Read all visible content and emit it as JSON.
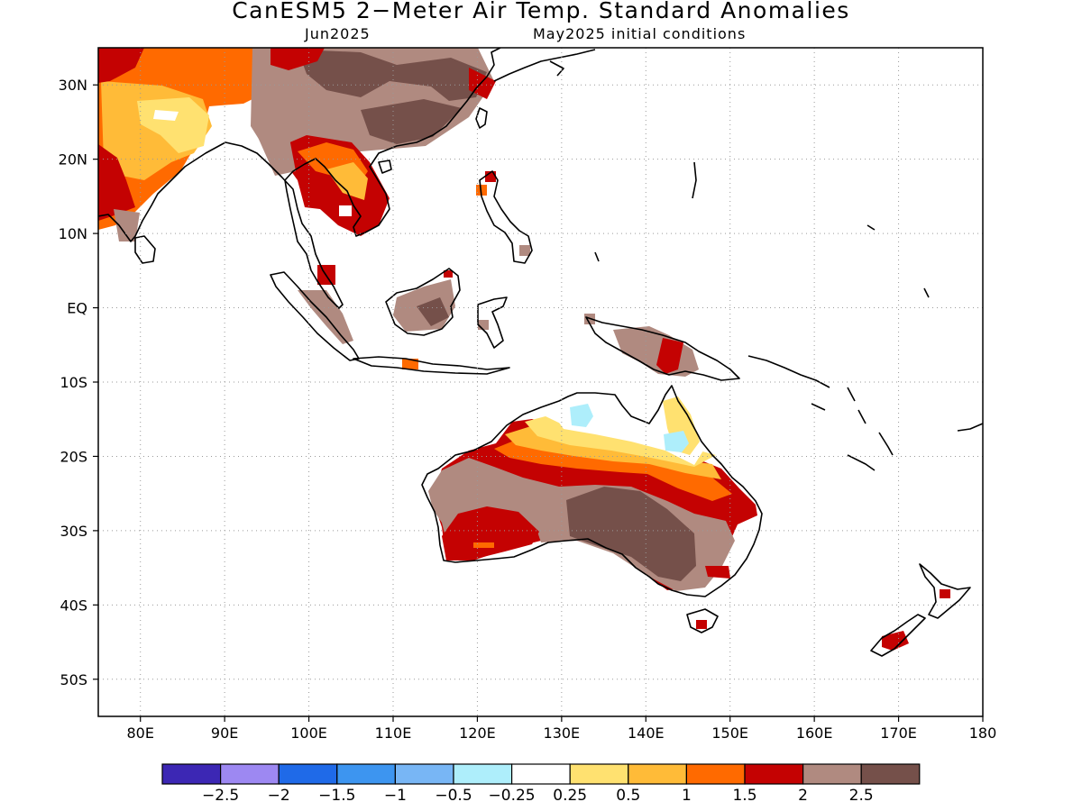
{
  "figure": {
    "title": "CanESM5 2−Meter Air Temp. Standard Anomalies",
    "valid_month": "Jun2025",
    "init_text": "May2025 initial conditions"
  },
  "map": {
    "lon_range": [
      75,
      180
    ],
    "lat_range": [
      -55,
      35
    ],
    "lon_ticks": [
      {
        "v": 80,
        "label": "80E"
      },
      {
        "v": 90,
        "label": "90E"
      },
      {
        "v": 100,
        "label": "100E"
      },
      {
        "v": 110,
        "label": "110E"
      },
      {
        "v": 120,
        "label": "120E"
      },
      {
        "v": 130,
        "label": "130E"
      },
      {
        "v": 140,
        "label": "140E"
      },
      {
        "v": 150,
        "label": "150E"
      },
      {
        "v": 160,
        "label": "160E"
      },
      {
        "v": 170,
        "label": "170E"
      },
      {
        "v": 180,
        "label": "180"
      }
    ],
    "lat_ticks": [
      {
        "v": 30,
        "label": "30N"
      },
      {
        "v": 20,
        "label": "20N"
      },
      {
        "v": 10,
        "label": "10N"
      },
      {
        "v": 0,
        "label": "EQ"
      },
      {
        "v": -10,
        "label": "10S"
      },
      {
        "v": -20,
        "label": "20S"
      },
      {
        "v": -30,
        "label": "30S"
      },
      {
        "v": -40,
        "label": "40S"
      },
      {
        "v": -50,
        "label": "50S"
      }
    ],
    "grid": "dotted"
  },
  "colorbar": {
    "colors": [
      "#3c27b4",
      "#9d88f2",
      "#1f6ae8",
      "#3d95f0",
      "#78b6f5",
      "#aeeefb",
      "#ffffff",
      "#ffe170",
      "#ffbb38",
      "#ff6a00",
      "#c40202",
      "#b08a80",
      "#75504a"
    ],
    "labels": [
      "−2.5",
      "−2",
      "−1.5",
      "−1",
      "−0.5",
      "−0.25",
      "0.25",
      "0.5",
      "1",
      "1.5",
      "2",
      "2.5"
    ]
  },
  "colors": {
    "land_outline": "#000000",
    "grid": "#9a9a9a"
  }
}
